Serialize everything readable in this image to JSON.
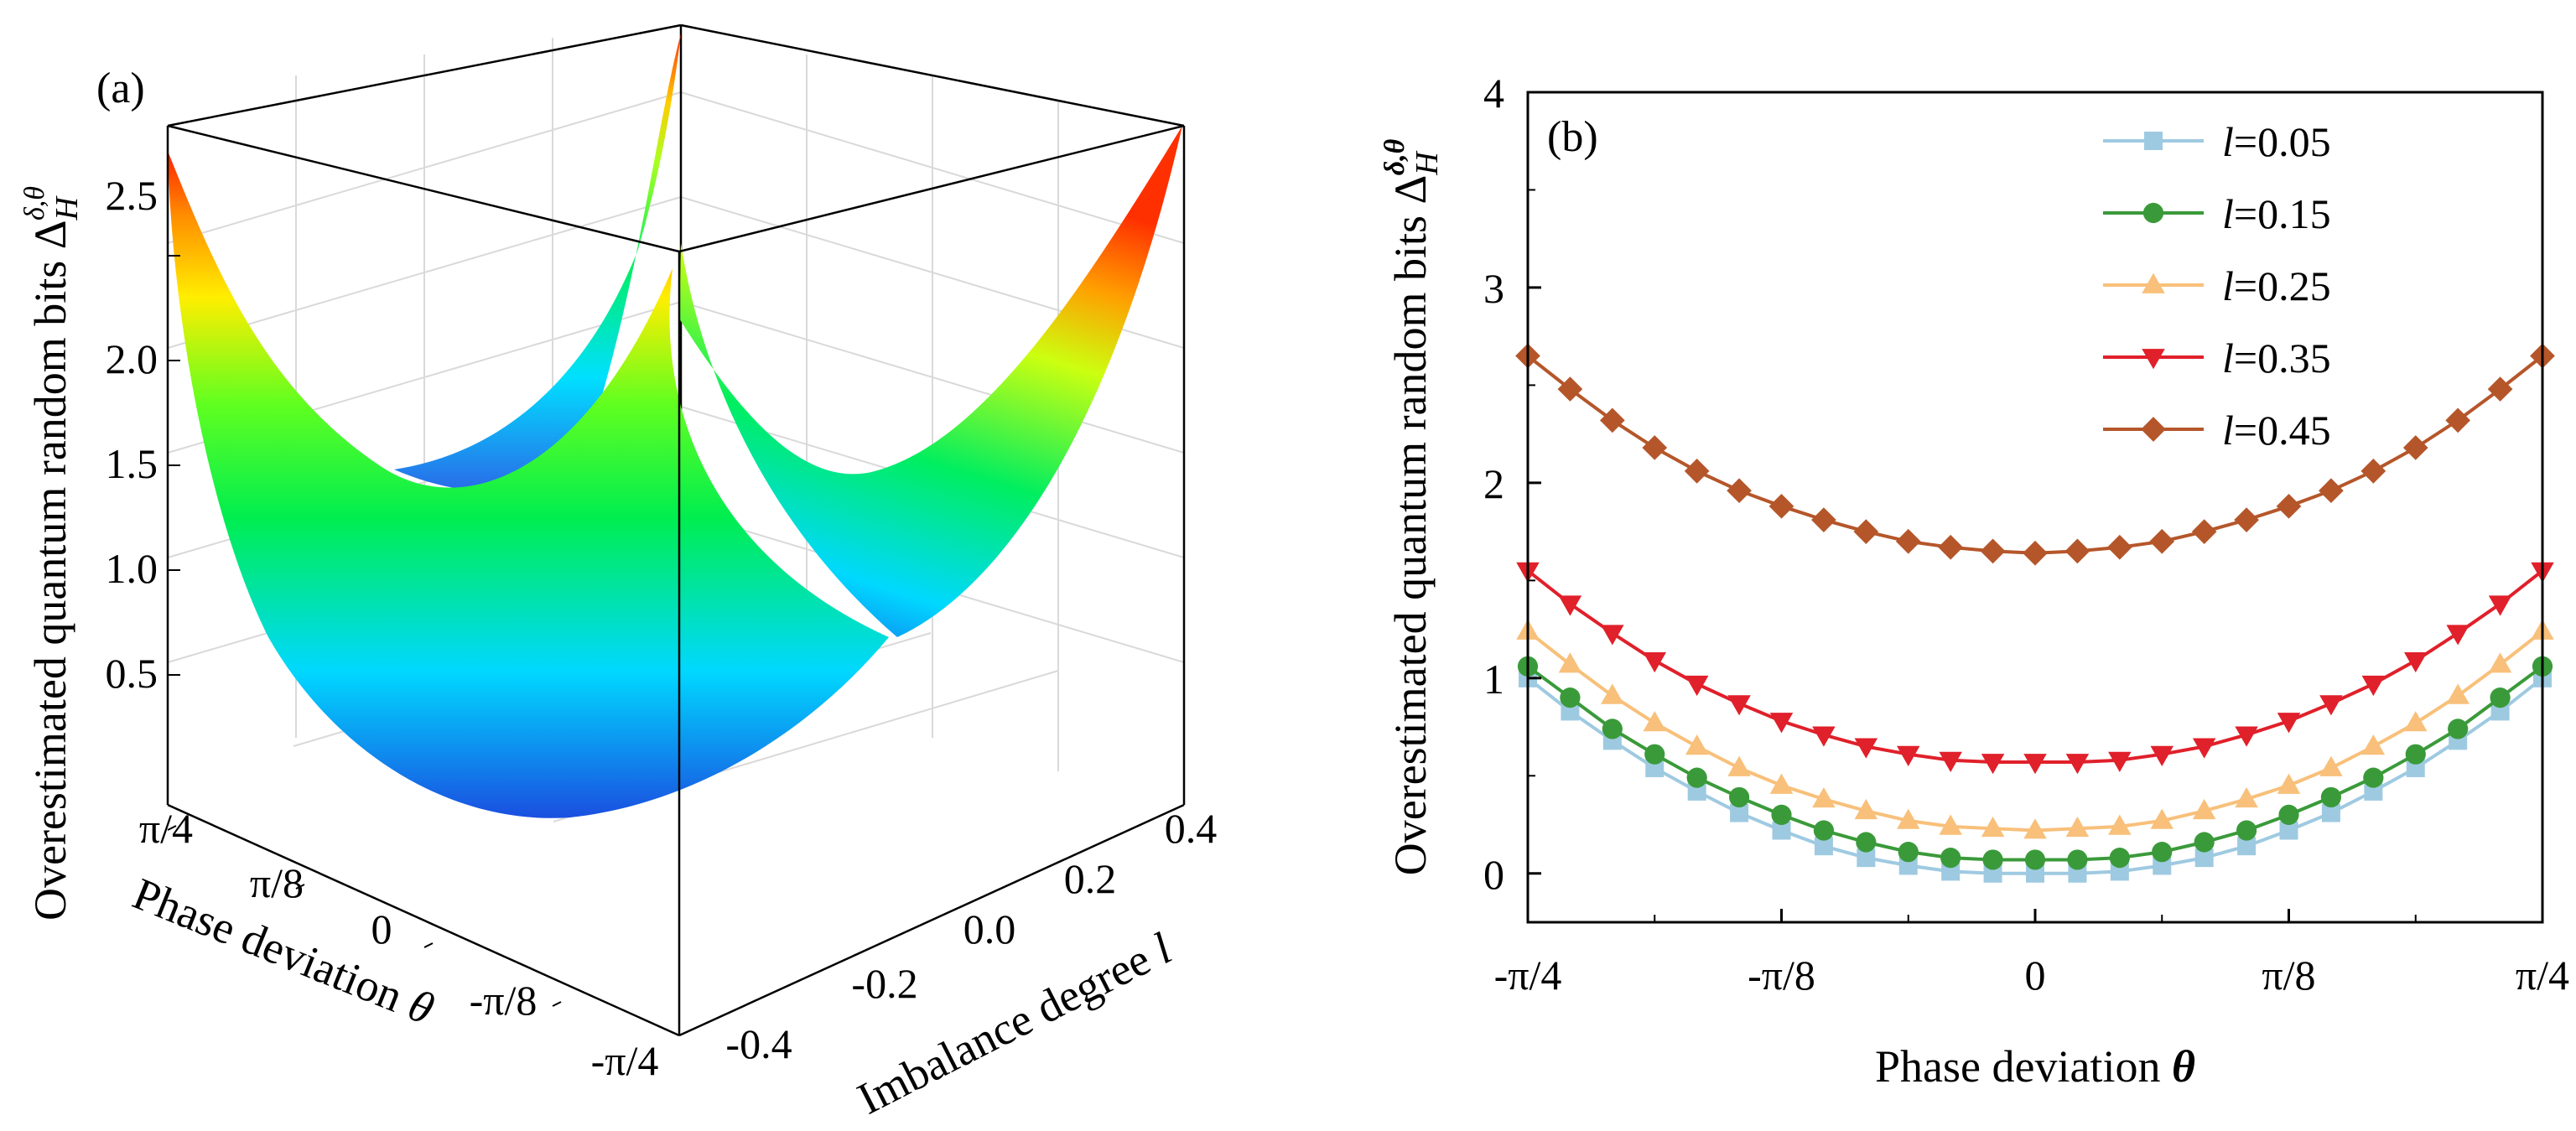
{
  "panel_a": {
    "label": "(a)",
    "zlabel": "Overestimated quantum random bits Δ",
    "zlabel_sub": "H",
    "zlabel_sup": "δ,θ",
    "xlabel_text": "Phase deviation ",
    "xlabel_symbol": "θ",
    "ylabel_text": "Imbalance degree ",
    "ylabel_symbol": "l",
    "z_ticks": [
      "0.5",
      "1.0",
      "1.5",
      "2.0",
      "2.5"
    ],
    "theta_ticks": [
      "π/4",
      "π/8",
      "0",
      "-π/8",
      "-π/4"
    ],
    "l_ticks": [
      "0.4",
      "0.2",
      "0.0",
      "-0.2",
      "-0.4"
    ]
  },
  "panel_b": {
    "label": "(b)",
    "ylabel": "Overestimated quantum random bits Δ",
    "ylabel_sub": "H",
    "ylabel_sup": "δ,θ",
    "xlabel_text": "Phase deviation ",
    "xlabel_symbol": "θ",
    "x_ticks": [
      "-π/4",
      "-π/8",
      "0",
      "π/8",
      "π/4"
    ],
    "y_ticks": [
      "0",
      "1",
      "2",
      "3",
      "4"
    ],
    "legend_var": "l"
  },
  "chart_data": [
    {
      "type": "surface",
      "title": "(a)",
      "xlabel": "Phase deviation θ",
      "ylabel": "Imbalance degree l",
      "zlabel": "Overestimated quantum random bits Δ_H^{δ,θ}",
      "x_range": [
        -0.7854,
        0.7854
      ],
      "y_range": [
        -0.5,
        0.5
      ],
      "z_range": [
        0,
        2.7
      ],
      "surface_min": 0.0,
      "surface_max_corner": 2.65,
      "colormap": [
        "#1a4fe0",
        "#00e5ff",
        "#00ff40",
        "#ffff00",
        "#ff2000"
      ]
    },
    {
      "type": "line",
      "title": "(b)",
      "xlabel": "Phase deviation θ",
      "ylabel": "Overestimated quantum random bits Δ_H^{δ,θ}",
      "xlim": [
        -0.7854,
        0.7854
      ],
      "ylim": [
        -0.25,
        4
      ],
      "x_count": 25,
      "series": [
        {
          "name": "l=0.05",
          "legend": "=0.05",
          "color": "#9ecae1",
          "marker": "square",
          "values": [
            1.0,
            0.83,
            0.68,
            0.54,
            0.42,
            0.31,
            0.22,
            0.14,
            0.08,
            0.04,
            0.01,
            0.0,
            0.0,
            0.0,
            0.01,
            0.04,
            0.08,
            0.14,
            0.22,
            0.31,
            0.42,
            0.54,
            0.68,
            0.83,
            1.0
          ]
        },
        {
          "name": "l=0.15",
          "legend": "=0.15",
          "color": "#3a9a3a",
          "marker": "circle",
          "values": [
            1.06,
            0.9,
            0.74,
            0.61,
            0.49,
            0.39,
            0.3,
            0.22,
            0.16,
            0.11,
            0.08,
            0.07,
            0.07,
            0.07,
            0.08,
            0.11,
            0.16,
            0.22,
            0.3,
            0.39,
            0.49,
            0.61,
            0.74,
            0.9,
            1.06
          ]
        },
        {
          "name": "l=0.25",
          "legend": "=0.25",
          "color": "#f8c07a",
          "marker": "triangle-up",
          "values": [
            1.24,
            1.07,
            0.91,
            0.77,
            0.65,
            0.54,
            0.45,
            0.38,
            0.32,
            0.27,
            0.24,
            0.23,
            0.22,
            0.23,
            0.24,
            0.27,
            0.32,
            0.38,
            0.45,
            0.54,
            0.65,
            0.77,
            0.91,
            1.07,
            1.24
          ]
        },
        {
          "name": "l=0.35",
          "legend": "=0.35",
          "color": "#e0202a",
          "marker": "triangle-down",
          "values": [
            1.55,
            1.38,
            1.23,
            1.09,
            0.97,
            0.87,
            0.78,
            0.71,
            0.65,
            0.61,
            0.58,
            0.57,
            0.57,
            0.57,
            0.58,
            0.61,
            0.65,
            0.71,
            0.78,
            0.87,
            0.97,
            1.09,
            1.23,
            1.38,
            1.55
          ]
        },
        {
          "name": "l=0.45",
          "legend": "=0.45",
          "color": "#b5562a",
          "marker": "diamond",
          "values": [
            2.65,
            2.48,
            2.32,
            2.18,
            2.06,
            1.96,
            1.88,
            1.81,
            1.75,
            1.7,
            1.67,
            1.65,
            1.64,
            1.65,
            1.67,
            1.7,
            1.75,
            1.81,
            1.88,
            1.96,
            2.06,
            2.18,
            2.32,
            2.48,
            2.65
          ]
        }
      ]
    }
  ]
}
